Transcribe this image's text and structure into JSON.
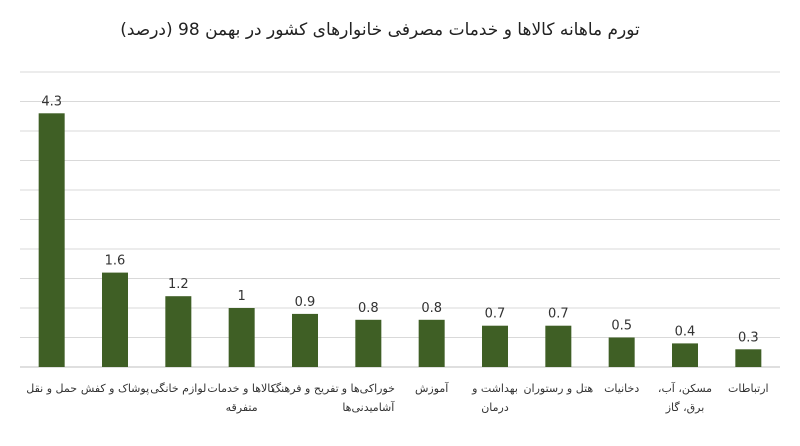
{
  "chart_data": {
    "type": "bar",
    "title": "تورم ماهانه کالاها و خدمات مصرفی خانوارهای کشور در بهمن 98 (درصد)",
    "categories": [
      "حمل و نقل",
      "پوشاک و کفش",
      "لوازم خانگی",
      "کالاها و خدمات متفرقه",
      "تفریح و فرهنگ",
      "خوراکی‌ها و آشامیدنی‌ها",
      "آموزش",
      "بهداشت و درمان",
      "هتل و رستوران",
      "دخانیات",
      "مسکن، آب، برق، گاز",
      "ارتباطات"
    ],
    "values": [
      4.3,
      1.6,
      1.2,
      1,
      0.9,
      0.8,
      0.8,
      0.7,
      0.7,
      0.5,
      0.4,
      0.3
    ],
    "value_labels": [
      "4.3",
      "1.6",
      "1.2",
      "1",
      "0.9",
      "0.8",
      "0.8",
      "0.7",
      "0.7",
      "0.5",
      "0.4",
      "0.3"
    ],
    "xlabel": "",
    "ylabel": "",
    "ylim": [
      0,
      5
    ],
    "grid": true,
    "legend": "none",
    "bar_color": "#3f5f25",
    "grid_color": "#d9d9d9"
  }
}
